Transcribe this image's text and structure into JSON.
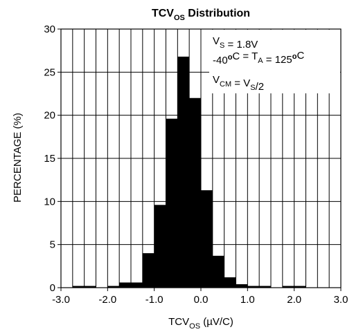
{
  "chart_data": {
    "type": "bar",
    "title": {
      "main": "TCV",
      "sub": "OS",
      "tail": " Distribution"
    },
    "xlabel": {
      "main": "TCV",
      "sub": "OS",
      "tail": " (µV/C)"
    },
    "ylabel": "PERCENTAGE (%)",
    "xlim": [
      -3.0,
      3.0
    ],
    "ylim": [
      0,
      30
    ],
    "x_ticks": [
      -3.0,
      -2.0,
      -1.0,
      0.0,
      1.0,
      2.0,
      3.0
    ],
    "x_tick_labels": [
      "-3.0",
      "-2.0",
      "-1.0",
      "0.0",
      "1.0",
      "2.0",
      "3.0"
    ],
    "y_ticks": [
      0,
      5,
      10,
      15,
      20,
      25,
      30
    ],
    "y_tick_labels": [
      "0",
      "5",
      "10",
      "15",
      "20",
      "25",
      "30"
    ],
    "grid": true,
    "bin_width": 0.25,
    "bins": [
      {
        "x0": -3.0,
        "value": 0
      },
      {
        "x0": -2.75,
        "value": 0.2
      },
      {
        "x0": -2.5,
        "value": 0.2
      },
      {
        "x0": -2.25,
        "value": 0
      },
      {
        "x0": -2.0,
        "value": 0.2
      },
      {
        "x0": -1.75,
        "value": 0.6
      },
      {
        "x0": -1.5,
        "value": 0.6
      },
      {
        "x0": -1.25,
        "value": 4.0
      },
      {
        "x0": -1.0,
        "value": 9.6
      },
      {
        "x0": -0.75,
        "value": 19.6
      },
      {
        "x0": -0.5,
        "value": 26.8
      },
      {
        "x0": -0.25,
        "value": 22.0
      },
      {
        "x0": 0.0,
        "value": 11.3
      },
      {
        "x0": 0.25,
        "value": 3.7
      },
      {
        "x0": 0.5,
        "value": 1.2
      },
      {
        "x0": 0.75,
        "value": 0.4
      },
      {
        "x0": 1.0,
        "value": 0.2
      },
      {
        "x0": 1.25,
        "value": 0.2
      },
      {
        "x0": 1.5,
        "value": 0
      },
      {
        "x0": 1.75,
        "value": 0.2
      },
      {
        "x0": 2.0,
        "value": 0.2
      },
      {
        "x0": 2.25,
        "value": 0
      },
      {
        "x0": 2.5,
        "value": 0
      },
      {
        "x0": 2.75,
        "value": 0
      }
    ],
    "legend_position": "top-right",
    "annotations": [
      [
        {
          "t": "V"
        },
        {
          "t": "S",
          "sub": true
        },
        {
          "t": " = 1.8V"
        }
      ],
      [
        {
          "t": "-40"
        },
        {
          "t": "o",
          "sup": true
        },
        {
          "t": "C = T"
        },
        {
          "t": "A",
          "sub": true
        },
        {
          "t": " = 125"
        },
        {
          "t": "o",
          "sup": true
        },
        {
          "t": "C"
        }
      ],
      [
        {
          "t": "V"
        },
        {
          "t": "CM",
          "sub": true
        },
        {
          "t": " = V"
        },
        {
          "t": "S",
          "sub": true
        },
        {
          "t": "/2"
        }
      ]
    ],
    "colors": {
      "bar": "#000000",
      "grid": "#000000",
      "background": "#ffffff"
    }
  }
}
